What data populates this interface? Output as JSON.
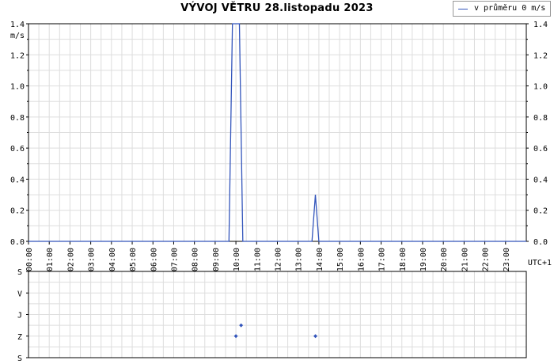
{
  "title": "VÝVOJ VĚTRU  28.listopadu 2023",
  "legend": {
    "label": "v průměru 0 m/s",
    "color": "#3355bb"
  },
  "chart_data": [
    {
      "type": "line",
      "ylabel": "m/s",
      "timezone_label": "UTC+1",
      "ylim": [
        0,
        1.4
      ],
      "yticks": [
        0.0,
        0.2,
        0.4,
        0.6,
        0.8,
        1.0,
        1.2,
        1.4
      ],
      "ytick_labels": [
        "0.0",
        "0.2",
        "0.4",
        "0.6",
        "0.8",
        "1.0",
        "1.2",
        "1.4"
      ],
      "xlim": [
        "00:00",
        "24:00"
      ],
      "xtick_labels": [
        "00:00",
        "01:00",
        "02:00",
        "03:00",
        "04:00",
        "05:00",
        "06:00",
        "07:00",
        "08:00",
        "09:00",
        "10:00",
        "11:00",
        "12:00",
        "13:00",
        "14:00",
        "15:00",
        "16:00",
        "17:00",
        "18:00",
        "19:00",
        "20:00",
        "21:00",
        "22:00",
        "23:00"
      ],
      "grid": true,
      "series": [
        {
          "color": "#3355bb",
          "x": [
            "00:00",
            "09:40",
            "09:50",
            "10:10",
            "10:20",
            "13:40",
            "13:50",
            "14:00",
            "24:00"
          ],
          "y": [
            0,
            0,
            1.4,
            1.4,
            0,
            0,
            0.3,
            0,
            0
          ]
        }
      ]
    },
    {
      "type": "scatter",
      "ylabel": "",
      "ycategories": [
        "S",
        "Z",
        "J",
        "V",
        "S"
      ],
      "xlim": [
        "00:00",
        "24:00"
      ],
      "grid": true,
      "series": [
        {
          "color": "#3355bb",
          "x": [
            "10:00",
            "10:15",
            "13:50"
          ],
          "y": [
            "Z",
            "Z/J",
            "Z"
          ]
        }
      ]
    }
  ]
}
